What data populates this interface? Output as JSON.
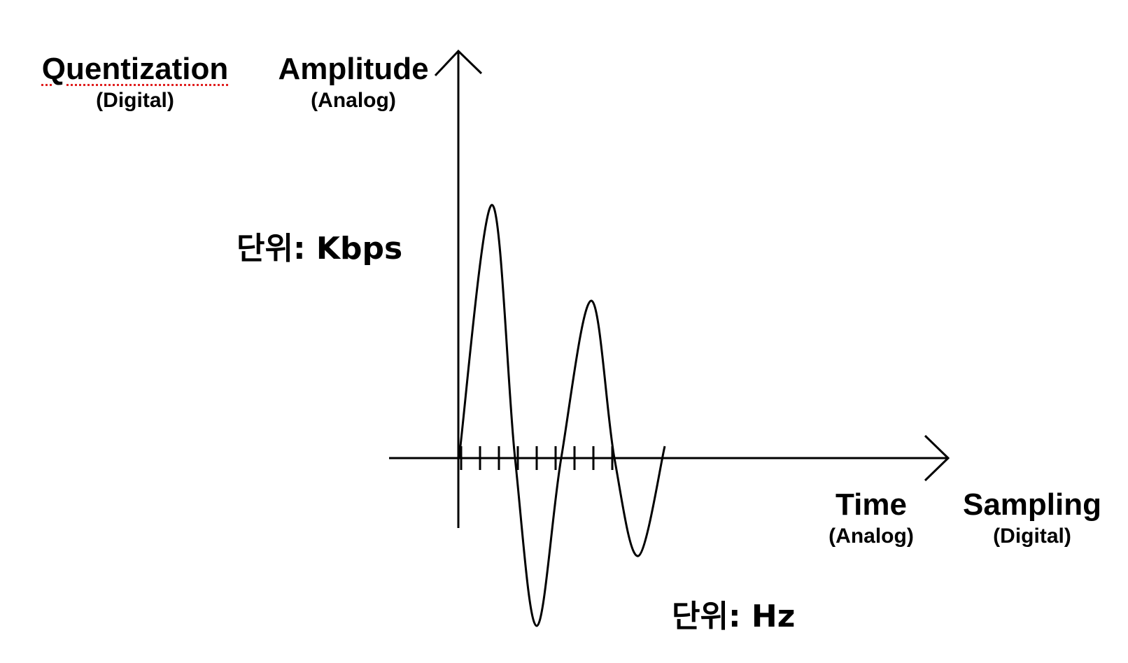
{
  "labels": {
    "quantization": {
      "title": "Quentization",
      "subtitle": "(Digital)"
    },
    "amplitude": {
      "title": "Amplitude",
      "subtitle": "(Analog)"
    },
    "time": {
      "title": "Time",
      "subtitle": "(Analog)"
    },
    "sampling": {
      "title": "Sampling",
      "subtitle": "(Digital)"
    }
  },
  "units": {
    "amplitude_unit": "단위: Kbps",
    "time_unit": "단위: Hz"
  },
  "spellcheck_flagged_word": "Quentization",
  "sample_tick_count": 9,
  "colors": {
    "ink": "#000000",
    "spellcheck_underline": "#e02020",
    "background": "#ffffff"
  }
}
